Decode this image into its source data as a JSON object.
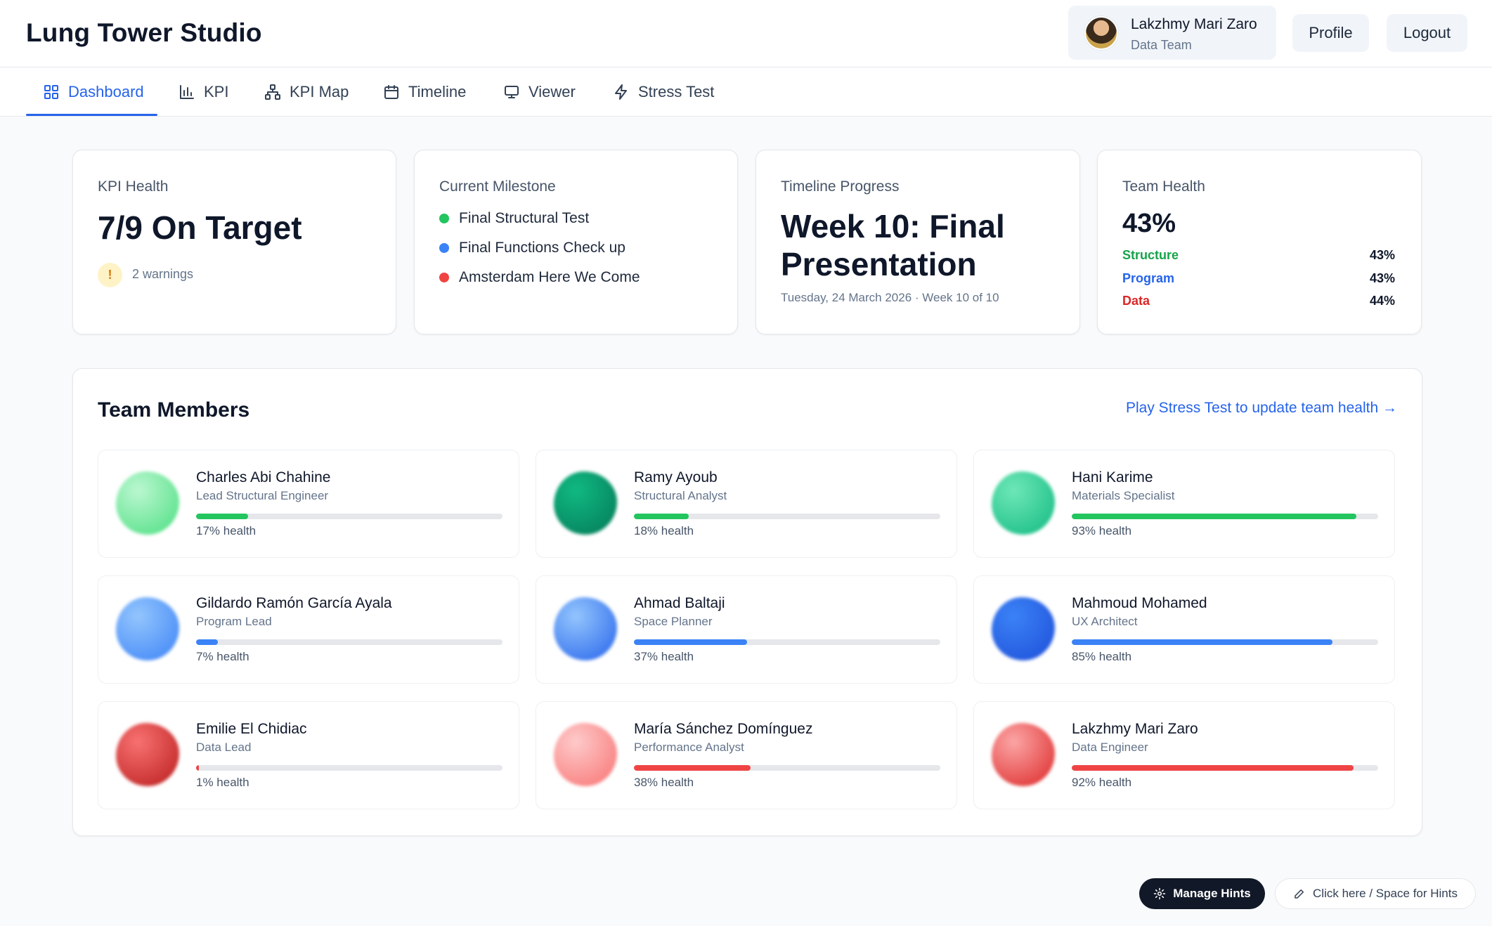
{
  "app": {
    "title": "Lung Tower Studio"
  },
  "user": {
    "name": "Lakzhmy Mari Zaro",
    "team": "Data Team",
    "avatar_icon": "user-avatar-icon"
  },
  "header": {
    "profile_label": "Profile",
    "logout_label": "Logout"
  },
  "nav": {
    "active": "Dashboard",
    "tabs": [
      {
        "label": "Dashboard",
        "icon": "grid-icon"
      },
      {
        "label": "KPI",
        "icon": "bar-chart-icon"
      },
      {
        "label": "KPI Map",
        "icon": "network-icon"
      },
      {
        "label": "Timeline",
        "icon": "calendar-icon"
      },
      {
        "label": "Viewer",
        "icon": "monitor-icon"
      },
      {
        "label": "Stress Test",
        "icon": "lightning-icon"
      }
    ]
  },
  "cards": {
    "kpi_health": {
      "label": "KPI Health",
      "value": "7/9 On Target",
      "warning_icon": "!",
      "warnings": "2 warnings"
    },
    "milestone": {
      "label": "Current Milestone",
      "items": [
        {
          "text": "Final Structural Test",
          "color": "#22c55e"
        },
        {
          "text": "Final Functions Check up",
          "color": "#3b82f6"
        },
        {
          "text": "Amsterdam Here We Come",
          "color": "#ef4444"
        }
      ]
    },
    "timeline": {
      "label": "Timeline Progress",
      "value_line1": "Week 10: Final",
      "value_line2": "Presentation",
      "subtitle": "Tuesday, 24 March 2026 · Week 10 of 10"
    },
    "team_health": {
      "label": "Team Health",
      "value": "43%",
      "rows": [
        {
          "name": "Structure",
          "pct": "43%",
          "color": "#16a34a"
        },
        {
          "name": "Program",
          "pct": "43%",
          "color": "#2563eb"
        },
        {
          "name": "Data",
          "pct": "44%",
          "color": "#dc2626"
        }
      ]
    }
  },
  "team": {
    "title": "Team Members",
    "link": "Play Stress Test to update team health →",
    "members": [
      {
        "name": "Charles Abi Chahine",
        "role": "Lead Structural Engineer",
        "health": 17,
        "health_label": "17% health",
        "bar_color": "#22c55e",
        "blob_colors": [
          "#bbf7d0",
          "#4ade80"
        ]
      },
      {
        "name": "Ramy Ayoub",
        "role": "Structural Analyst",
        "health": 18,
        "health_label": "18% health",
        "bar_color": "#22c55e",
        "blob_colors": [
          "#10b981",
          "#047857"
        ]
      },
      {
        "name": "Hani Karime",
        "role": "Materials Specialist",
        "health": 93,
        "health_label": "93% health",
        "bar_color": "#22c55e",
        "blob_colors": [
          "#6ee7b7",
          "#10b981"
        ]
      },
      {
        "name": "Gildardo Ramón García Ayala",
        "role": "Program Lead",
        "health": 7,
        "health_label": "7% health",
        "bar_color": "#3b82f6",
        "blob_colors": [
          "#93c5fd",
          "#3b82f6"
        ]
      },
      {
        "name": "Ahmad Baltaji",
        "role": "Space Planner",
        "health": 37,
        "health_label": "37% health",
        "bar_color": "#3b82f6",
        "blob_colors": [
          "#93c5fd",
          "#2563eb"
        ]
      },
      {
        "name": "Mahmoud Mohamed",
        "role": "UX Architect",
        "health": 85,
        "health_label": "85% health",
        "bar_color": "#3b82f6",
        "blob_colors": [
          "#3b82f6",
          "#1d4ed8"
        ]
      },
      {
        "name": "Emilie El Chidiac",
        "role": "Data Lead",
        "health": 1,
        "health_label": "1% health",
        "bar_color": "#ef4444",
        "blob_colors": [
          "#f87171",
          "#b91c1c"
        ]
      },
      {
        "name": "María Sánchez Domínguez",
        "role": "Performance Analyst",
        "health": 38,
        "health_label": "38% health",
        "bar_color": "#ef4444",
        "blob_colors": [
          "#fecaca",
          "#f87171"
        ]
      },
      {
        "name": "Lakzhmy Mari Zaro",
        "role": "Data Engineer",
        "health": 92,
        "health_label": "92% health",
        "bar_color": "#ef4444",
        "blob_colors": [
          "#fca5a5",
          "#dc2626"
        ]
      }
    ]
  },
  "hints": {
    "manage_label": "Manage Hints",
    "manage_icon": "gear-icon",
    "click_label": "Click here / Space for Hints",
    "click_icon": "pencil-icon"
  }
}
